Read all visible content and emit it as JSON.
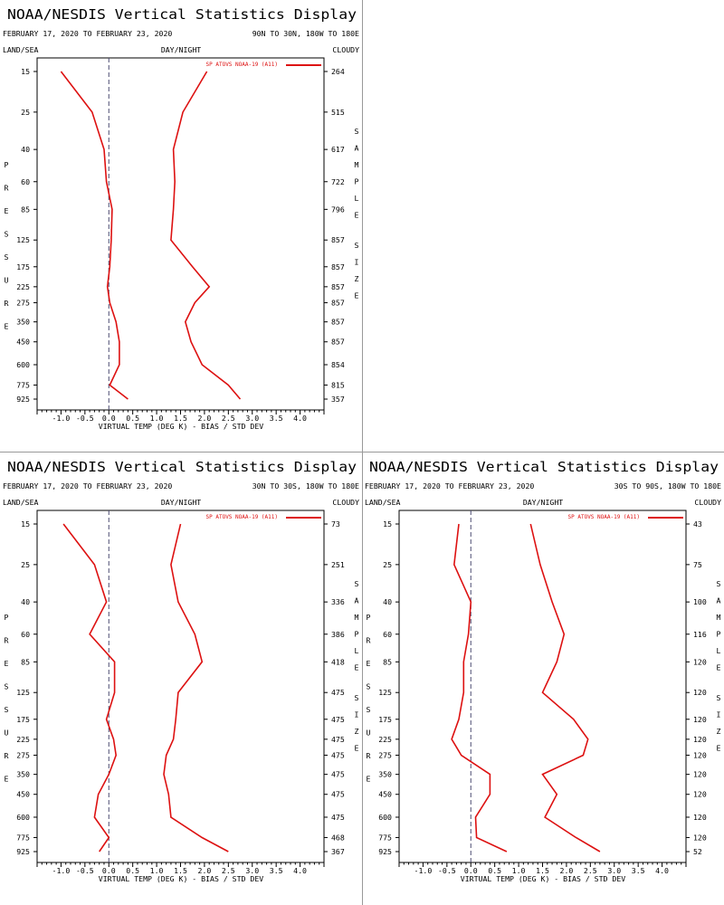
{
  "chart_data": [
    {
      "type": "line",
      "title": "NOAA/NESDIS Vertical Statistics Display",
      "date_range": "FEBRUARY 17, 2020 TO FEBRUARY 23, 2020",
      "region": "90N TO 30N, 180W TO 180E",
      "top_left_label": "LAND/SEA",
      "top_center_label": "DAY/NIGHT",
      "top_right_label": "CLOUDY",
      "left_axis_title": "PRESSURE",
      "right_axis_title": "SAMPLE SIZE",
      "xlabel": "VIRTUAL TEMP (DEG K) - BIAS / STD DEV",
      "xlim": [
        -1.5,
        4.5
      ],
      "xticks": [
        -1.0,
        -0.5,
        0.0,
        0.5,
        1.0,
        1.5,
        2.0,
        2.5,
        3.0,
        3.5,
        4.0
      ],
      "xtick_labels": [
        "-1.0",
        "-0.5",
        "0.0",
        "0.5",
        "1.0",
        "1.5",
        "2.0",
        "2.5",
        "3.0",
        "3.5",
        "4.0"
      ],
      "pressure_levels": [
        "15",
        "25",
        "40",
        "60",
        "85",
        "125",
        "175",
        "225",
        "275",
        "350",
        "450",
        "600",
        "775",
        "925"
      ],
      "sample_size": [
        "264",
        "515",
        "617",
        "722",
        "796",
        "857",
        "857",
        "857",
        "857",
        "857",
        "857",
        "854",
        "815",
        "357"
      ],
      "legend": "SP ATOVS NOAA-19 (A11)",
      "series_color": "#dd1111",
      "bias": [
        -1.0,
        -0.35,
        -0.1,
        -0.05,
        0.07,
        0.05,
        0.02,
        -0.03,
        0.02,
        0.15,
        0.22,
        0.22,
        0.02,
        0.4
      ],
      "std_dev": [
        2.05,
        1.55,
        1.35,
        1.38,
        1.35,
        1.3,
        1.75,
        2.1,
        1.8,
        1.6,
        1.72,
        1.95,
        2.5,
        2.75
      ]
    },
    {
      "type": "line",
      "title": "NOAA/NESDIS Vertical Statistics Display",
      "date_range": "FEBRUARY 17, 2020 TO FEBRUARY 23, 2020",
      "region": "30N TO 30S, 180W TO 180E",
      "top_left_label": "LAND/SEA",
      "top_center_label": "DAY/NIGHT",
      "top_right_label": "CLOUDY",
      "left_axis_title": "PRESSURE",
      "right_axis_title": "SAMPLE SIZE",
      "xlabel": "VIRTUAL TEMP (DEG K) - BIAS / STD DEV",
      "xlim": [
        -1.5,
        4.5
      ],
      "xticks": [
        -1.0,
        -0.5,
        0.0,
        0.5,
        1.0,
        1.5,
        2.0,
        2.5,
        3.0,
        3.5,
        4.0
      ],
      "xtick_labels": [
        "-1.0",
        "-0.5",
        "0.0",
        "0.5",
        "1.0",
        "1.5",
        "2.0",
        "2.5",
        "3.0",
        "3.5",
        "4.0"
      ],
      "pressure_levels": [
        "15",
        "25",
        "40",
        "60",
        "85",
        "125",
        "175",
        "225",
        "275",
        "350",
        "450",
        "600",
        "775",
        "925"
      ],
      "sample_size": [
        "73",
        "251",
        "336",
        "386",
        "418",
        "475",
        "475",
        "475",
        "475",
        "475",
        "475",
        "475",
        "468",
        "367"
      ],
      "legend": "SP ATOVS NOAA-19 (A11)",
      "series_color": "#dd1111",
      "bias": [
        -0.95,
        -0.3,
        -0.05,
        -0.4,
        0.12,
        0.12,
        -0.05,
        0.1,
        0.15,
        0.0,
        -0.22,
        -0.3,
        0.0,
        -0.2
      ],
      "std_dev": [
        1.5,
        1.3,
        1.45,
        1.8,
        1.95,
        1.45,
        1.4,
        1.35,
        1.2,
        1.15,
        1.25,
        1.3,
        1.95,
        2.5
      ]
    },
    {
      "type": "line",
      "title": "NOAA/NESDIS Vertical Statistics Display",
      "date_range": "FEBRUARY 17, 2020 TO FEBRUARY 23, 2020",
      "region": "30S TO 90S, 180W TO 180E",
      "top_left_label": "LAND/SEA",
      "top_center_label": "DAY/NIGHT",
      "top_right_label": "CLOUDY",
      "left_axis_title": "PRESSURE",
      "right_axis_title": "SAMPLE SIZE",
      "xlabel": "VIRTUAL TEMP (DEG K) - BIAS / STD DEV",
      "xlim": [
        -1.5,
        4.5
      ],
      "xticks": [
        -1.0,
        -0.5,
        0.0,
        0.5,
        1.0,
        1.5,
        2.0,
        2.5,
        3.0,
        3.5,
        4.0
      ],
      "xtick_labels": [
        "-1.0",
        "-0.5",
        "0.0",
        "0.5",
        "1.0",
        "1.5",
        "2.0",
        "2.5",
        "3.0",
        "3.5",
        "4.0"
      ],
      "pressure_levels": [
        "15",
        "25",
        "40",
        "60",
        "85",
        "125",
        "175",
        "225",
        "275",
        "350",
        "450",
        "600",
        "775",
        "925"
      ],
      "sample_size": [
        "43",
        "75",
        "100",
        "116",
        "120",
        "120",
        "120",
        "120",
        "120",
        "120",
        "120",
        "120",
        "120",
        "52"
      ],
      "legend": "SP ATOVS NOAA-19 (A11)",
      "series_color": "#dd1111",
      "bias": [
        -0.25,
        -0.35,
        0.0,
        -0.05,
        -0.15,
        -0.15,
        -0.25,
        -0.4,
        -0.2,
        0.4,
        0.4,
        0.1,
        0.12,
        0.75
      ],
      "std_dev": [
        1.25,
        1.45,
        1.7,
        1.95,
        1.8,
        1.5,
        2.15,
        2.45,
        2.35,
        1.5,
        1.8,
        1.55,
        2.2,
        2.7
      ]
    }
  ]
}
